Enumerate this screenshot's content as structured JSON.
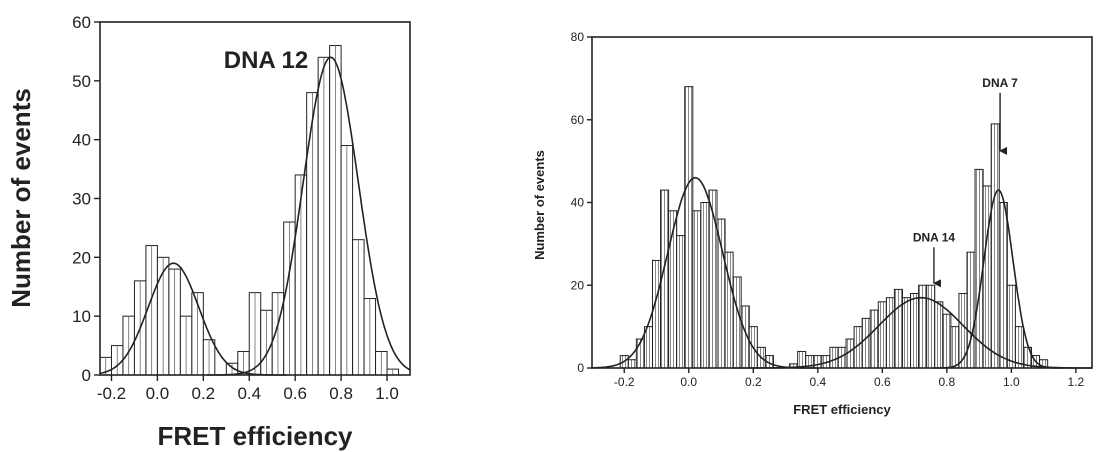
{
  "chart_data": [
    {
      "type": "bar",
      "title": "",
      "xlabel": "FRET efficiency",
      "ylabel": "Number of events",
      "xlim": [
        -0.25,
        1.1
      ],
      "ylim": [
        0,
        60
      ],
      "xticks": [
        "-0.2",
        "0.0",
        "0.2",
        "0.4",
        "0.6",
        "0.8",
        "1.0"
      ],
      "xtick_values": [
        -0.2,
        0.0,
        0.2,
        0.4,
        0.6,
        0.8,
        1.0
      ],
      "yticks": [
        "0",
        "10",
        "20",
        "30",
        "40",
        "50",
        "60"
      ],
      "ytick_values": [
        0,
        10,
        20,
        30,
        40,
        50,
        60
      ],
      "bin_width": 0.05,
      "bins_x": [
        -0.225,
        -0.175,
        -0.125,
        -0.075,
        -0.025,
        0.025,
        0.075,
        0.125,
        0.175,
        0.225,
        0.275,
        0.325,
        0.375,
        0.425,
        0.475,
        0.525,
        0.575,
        0.625,
        0.675,
        0.725,
        0.775,
        0.825,
        0.875,
        0.925,
        0.975,
        1.025
      ],
      "values": [
        3,
        5,
        10,
        16,
        22,
        20,
        18,
        10,
        14,
        6,
        0,
        2,
        4,
        14,
        11,
        14,
        26,
        34,
        48,
        54,
        56,
        39,
        23,
        13,
        4,
        1
      ],
      "fit_curves": [
        {
          "type": "gaussian",
          "amplitude": 19,
          "center": 0.07,
          "sigma": 0.11
        },
        {
          "type": "gaussian",
          "amplitude": 54,
          "center": 0.755,
          "sigma": 0.12
        }
      ],
      "annotations": [
        {
          "text": "DNA 12"
        }
      ],
      "grid": false,
      "legend": "none"
    },
    {
      "type": "bar",
      "title": "",
      "xlabel": "FRET efficiency",
      "ylabel": "Number of events",
      "xlim": [
        -0.3,
        1.25
      ],
      "ylim": [
        0,
        80
      ],
      "xticks": [
        "-0.2",
        "0.0",
        "0.2",
        "0.4",
        "0.6",
        "0.8",
        "1.0",
        "1.2"
      ],
      "xtick_values": [
        -0.2,
        0.0,
        0.2,
        0.4,
        0.6,
        0.8,
        1.0,
        1.2
      ],
      "yticks": [
        "0",
        "20",
        "40",
        "60",
        "80"
      ],
      "ytick_values": [
        0,
        20,
        40,
        60,
        80
      ],
      "bin_width": 0.025,
      "bins_x": [
        -0.2,
        -0.175,
        -0.15,
        -0.125,
        -0.1,
        -0.075,
        -0.05,
        -0.025,
        0.0,
        0.025,
        0.05,
        0.075,
        0.1,
        0.125,
        0.15,
        0.175,
        0.2,
        0.225,
        0.25,
        0.275,
        0.3,
        0.325,
        0.35,
        0.375,
        0.4,
        0.425,
        0.45,
        0.475,
        0.5,
        0.525,
        0.55,
        0.575,
        0.6,
        0.625,
        0.65,
        0.675,
        0.7,
        0.725,
        0.75,
        0.775,
        0.8,
        0.825,
        0.85,
        0.875,
        0.9,
        0.925,
        0.95,
        0.975,
        1.0,
        1.025,
        1.05,
        1.075,
        1.1
      ],
      "values": [
        3,
        2,
        7,
        10,
        26,
        43,
        38,
        32,
        68,
        38,
        40,
        43,
        36,
        28,
        22,
        15,
        10,
        5,
        3,
        0,
        0,
        1,
        4,
        3,
        3,
        3,
        5,
        5,
        7,
        10,
        12,
        14,
        16,
        17,
        19,
        17,
        18,
        20,
        20,
        16,
        13,
        10,
        18,
        28,
        48,
        44,
        59,
        40,
        20,
        10,
        5,
        3,
        2
      ],
      "fit_curves": [
        {
          "type": "gaussian",
          "amplitude": 46,
          "center": 0.02,
          "sigma": 0.085
        },
        {
          "type": "gaussian",
          "amplitude": 17,
          "center": 0.72,
          "sigma": 0.13
        },
        {
          "type": "gaussian",
          "amplitude": 43,
          "center": 0.96,
          "sigma": 0.045
        }
      ],
      "annotations": [
        {
          "text": "DNA 14",
          "arrow_x": 0.76,
          "arrow_y": 20
        },
        {
          "text": "DNA 7",
          "arrow_x": 0.965,
          "arrow_y": 52
        }
      ],
      "grid": false,
      "legend": "none"
    }
  ]
}
